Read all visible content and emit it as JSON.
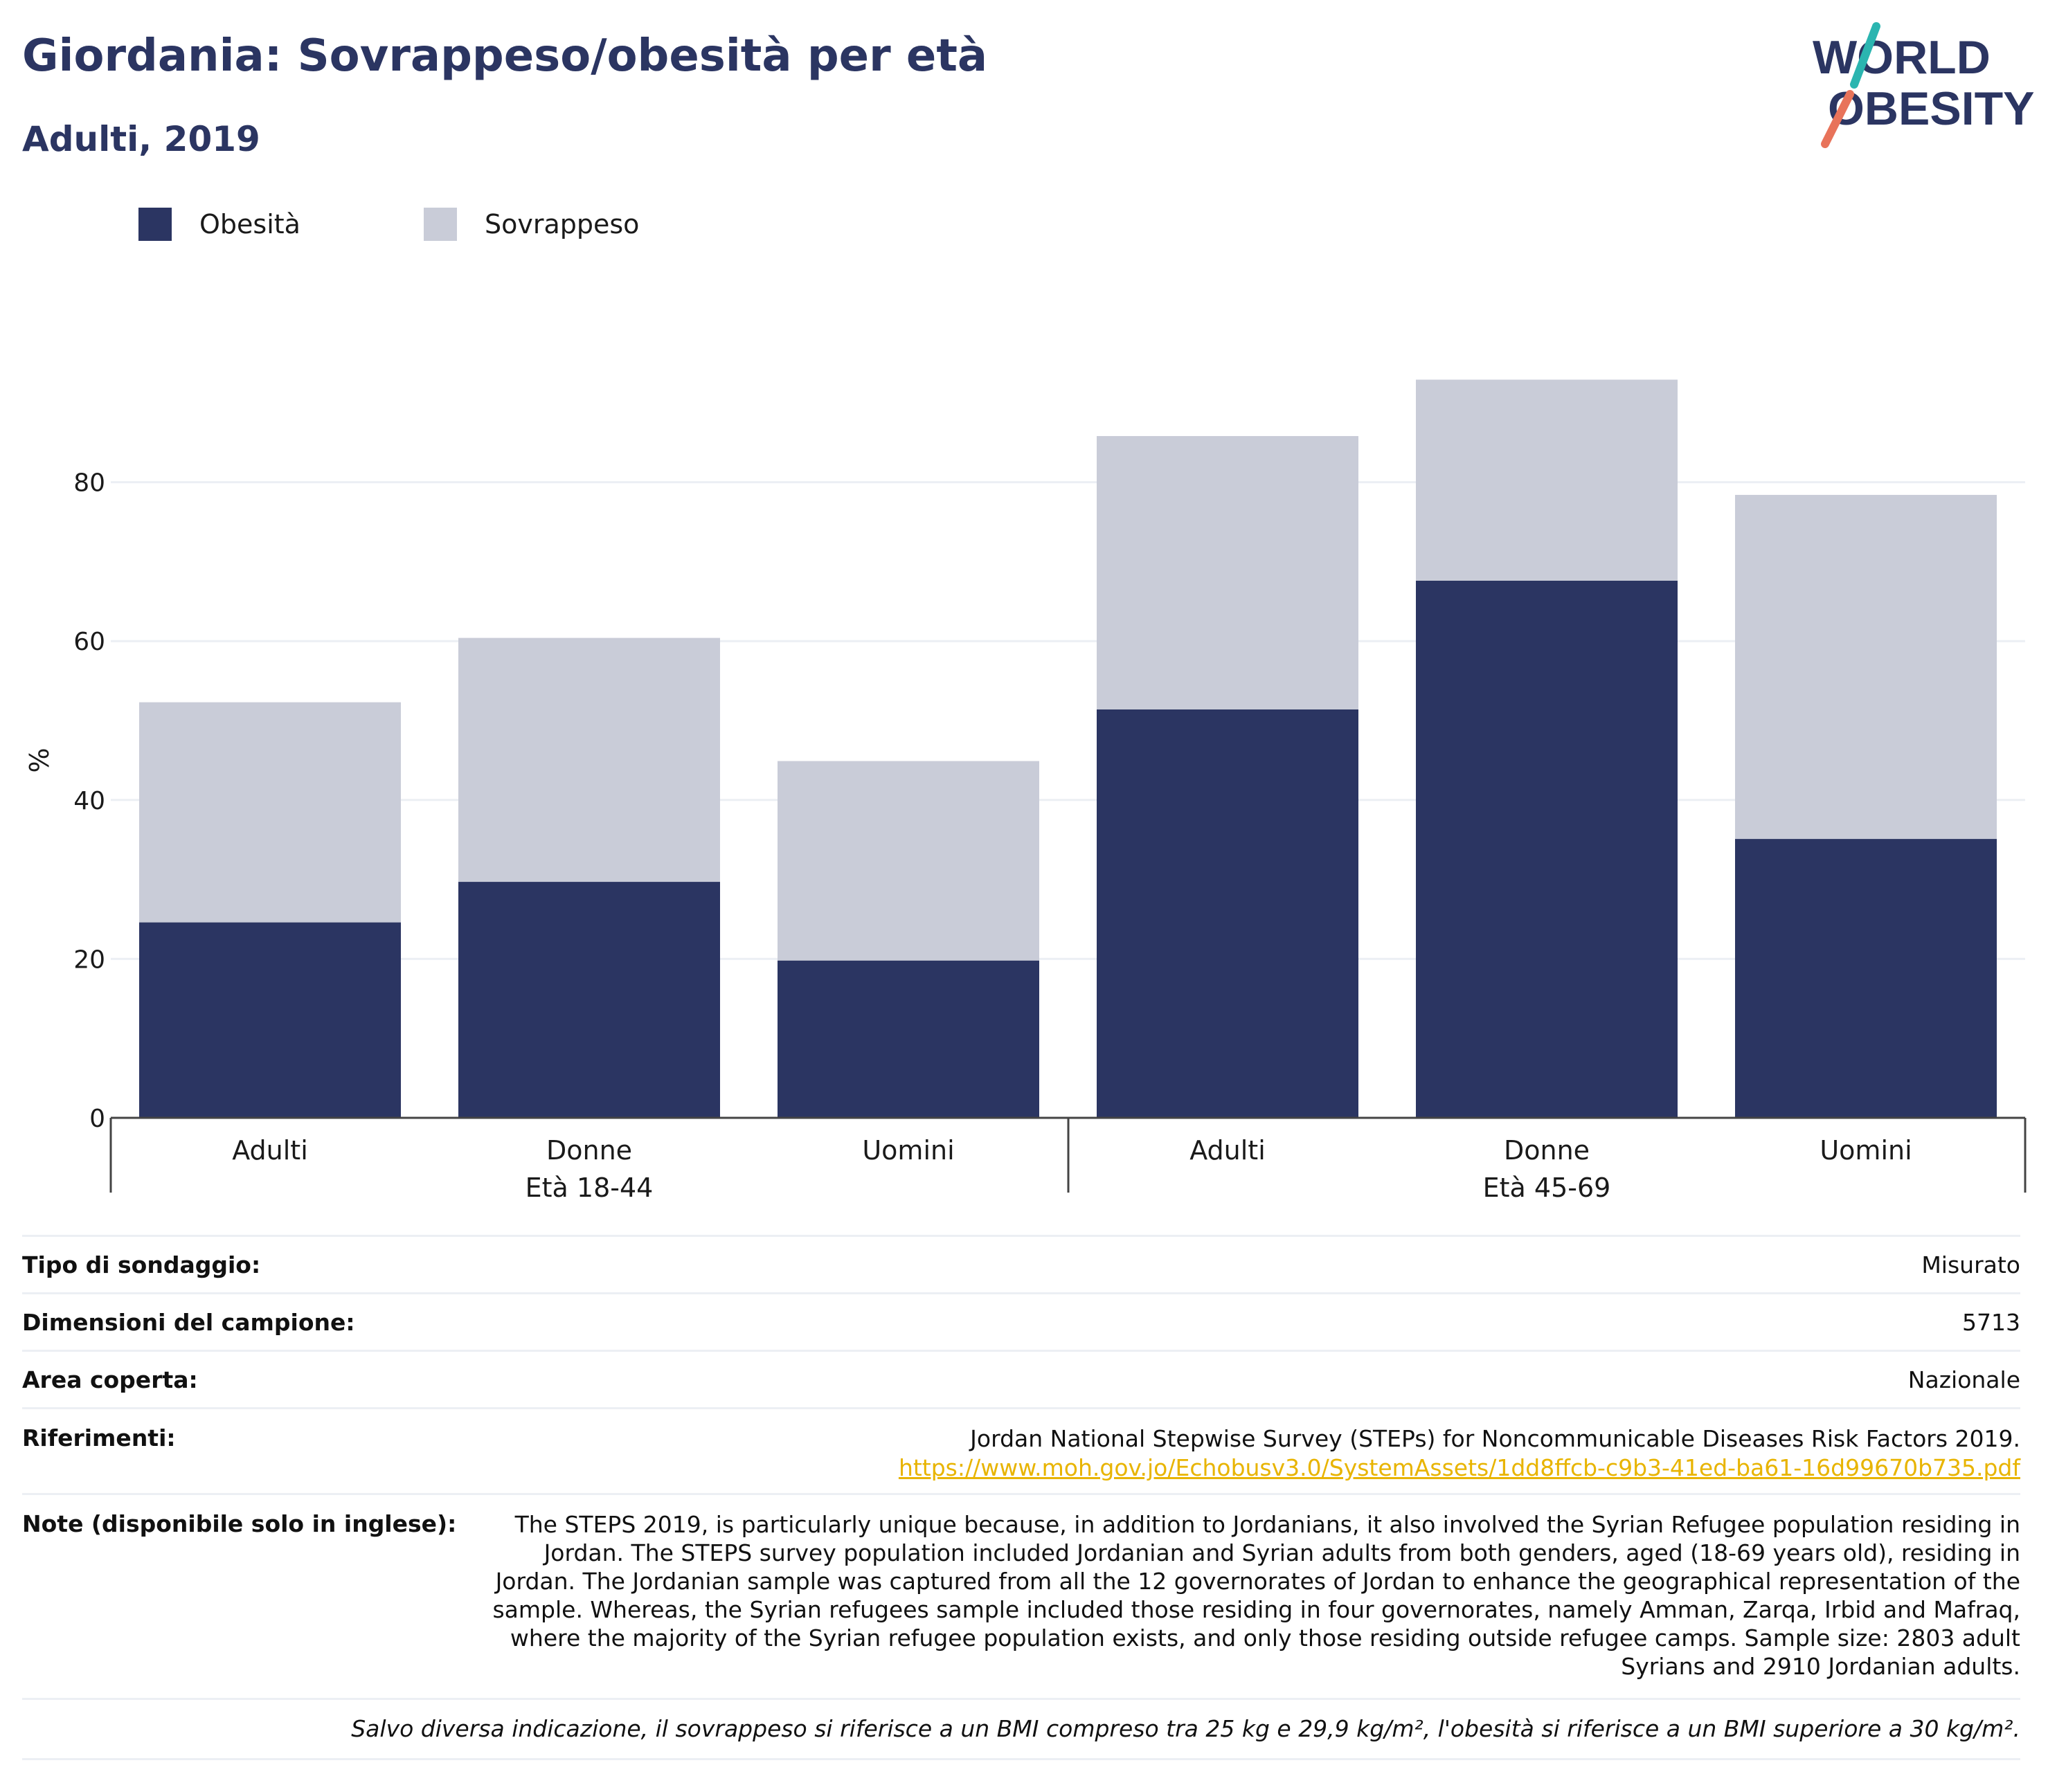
{
  "title": "Giordania: Sovrappeso/obesità per età",
  "subtitle": "Adulti, 2019",
  "logo": {
    "line1": "WORLD",
    "line2": "OBESITY",
    "colors": {
      "text": "#2b3562",
      "slash_top": "#2bb5b0",
      "slash_bottom": "#e8735a"
    }
  },
  "colors": {
    "obesity": "#2b3562",
    "overweight": "#c9ccd8",
    "title": "#2b3562",
    "link": "#e8b400",
    "grid": "#eceff4"
  },
  "chart_data": {
    "type": "bar",
    "stacked": true,
    "categories": [
      "Adulti",
      "Donne",
      "Uomini",
      "Adulti",
      "Donne",
      "Uomini"
    ],
    "groups": [
      {
        "label": "Età 18-44",
        "categories": [
          "Adulti",
          "Donne",
          "Uomini"
        ]
      },
      {
        "label": "Età 45-69",
        "categories": [
          "Adulti",
          "Donne",
          "Uomini"
        ]
      }
    ],
    "series": [
      {
        "name": "Obesità",
        "values": [
          24.6,
          29.7,
          19.8,
          51.4,
          67.6,
          35.1
        ]
      },
      {
        "name": "Sovrappeso",
        "values": [
          27.7,
          30.7,
          25.1,
          34.4,
          25.3,
          43.3
        ]
      }
    ],
    "ylabel": "%",
    "ylim": [
      0,
      95
    ],
    "yticks": [
      0,
      20,
      40,
      60,
      80
    ],
    "grid": true,
    "legend": "top-left"
  },
  "info": {
    "survey_type": {
      "label": "Tipo di sondaggio:",
      "value": "Misurato"
    },
    "sample_size": {
      "label": "Dimensioni del campione:",
      "value": "5713"
    },
    "area": {
      "label": "Area coperta:",
      "value": "Nazionale"
    },
    "references": {
      "label": "Riferimenti:",
      "value": "Jordan National Stepwise Survey (STEPs) for Noncommunicable Diseases Risk Factors 2019.",
      "link": "https://www.moh.gov.jo/Echobusv3.0/SystemAssets/1dd8ffcb-c9b3-41ed-ba61-16d99670b735.pdf"
    },
    "notes": {
      "label": "Note (disponibile solo in inglese):",
      "lines": [
        "The STEPS 2019, is particularly unique because, in addition to Jordanians, it also involved the Syrian Refugee population residing in",
        "Jordan. The STEPS survey population included Jordanian and Syrian adults from both genders, aged (18-69 years old), residing in",
        "Jordan. The Jordanian sample was captured from all the 12 governorates of Jordan to enhance the geographical representation of the",
        "sample. Whereas, the Syrian refugees sample included those residing in four governorates, namely Amman, Zarqa, Irbid and Mafraq,",
        "where the majority of the Syrian refugee population exists, and only those residing outside refugee camps. Sample size: 2803 adult",
        "Syrians and 2910 Jordanian adults."
      ]
    },
    "footnote": "Salvo diversa indicazione, il sovrappeso si riferisce a un BMI compreso tra 25 kg e 29,9 kg/m², l'obesità si riferisce a un BMI superiore a 30 kg/m²."
  }
}
